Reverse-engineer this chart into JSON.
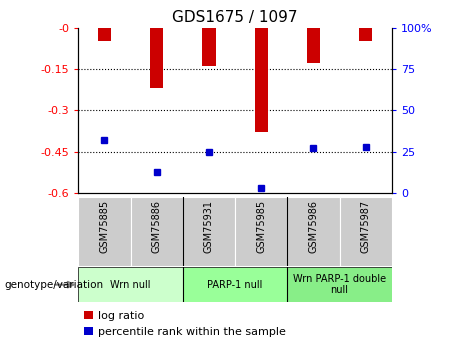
{
  "title": "GDS1675 / 1097",
  "samples": [
    "GSM75885",
    "GSM75886",
    "GSM75931",
    "GSM75985",
    "GSM75986",
    "GSM75987"
  ],
  "log_ratios": [
    -0.05,
    -0.22,
    -0.14,
    -0.38,
    -0.13,
    -0.05
  ],
  "percentile_ranks": [
    32,
    13,
    25,
    3,
    27,
    28
  ],
  "ylim_left": [
    -0.6,
    0
  ],
  "ylim_right": [
    0,
    100
  ],
  "yticks_left": [
    0,
    -0.15,
    -0.3,
    -0.45,
    -0.6
  ],
  "ytick_labels_left": [
    "-0",
    "-0.15",
    "-0.3",
    "-0.45",
    "-0.6"
  ],
  "yticks_right": [
    100,
    75,
    50,
    25,
    0
  ],
  "ytick_labels_right": [
    "100%",
    "75",
    "50",
    "25",
    "0"
  ],
  "bar_color": "#cc0000",
  "dot_color": "#0000cc",
  "bar_width": 0.25,
  "group_info": [
    {
      "label": "Wrn null",
      "xmin": 0,
      "xmax": 2,
      "color": "#ccffcc"
    },
    {
      "label": "PARP-1 null",
      "xmin": 2,
      "xmax": 4,
      "color": "#99ff99"
    },
    {
      "label": "Wrn PARP-1 double\nnull",
      "xmin": 4,
      "xmax": 6,
      "color": "#88ee88"
    }
  ],
  "legend_red_label": "log ratio",
  "legend_blue_label": "percentile rank within the sample",
  "genotype_label": "genotype/variation"
}
